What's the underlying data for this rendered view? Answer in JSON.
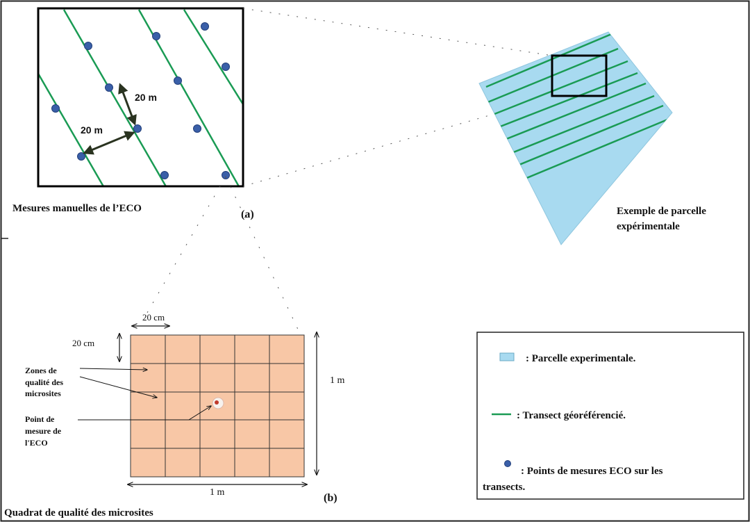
{
  "inset": {
    "spacing_label_vertical": "20 m",
    "spacing_label_horizontal": "20 m",
    "caption": "Mesures manuelles  de l’ECO",
    "tag": "(a)"
  },
  "parcel": {
    "caption_line1": "Exemple de parcelle",
    "caption_line2": "expérimentale"
  },
  "quadrat": {
    "top_dim": "20 cm",
    "left_dim": "20 cm",
    "right_dim": "1 m",
    "bottom_dim": "1 m",
    "zones_label_line1": "Zones de",
    "zones_label_line2": "qualité des",
    "zones_label_line3": "microsites",
    "point_label_line1": "Point de",
    "point_label_line2": "mesure de",
    "point_label_line3": "l'ECO",
    "tag": "(b)",
    "caption": "Quadrat de qualité  des microsites"
  },
  "legend": {
    "parcel": ": Parcelle experimentale.",
    "transect": ": Transect géoréférencié.",
    "points_line1": ": Points de mesures ECO sur les",
    "points_line2": "transects."
  },
  "colors": {
    "parcel_fill": "#a8daf0",
    "transect": "#1a9b54",
    "point_fill": "#3a5fa8",
    "quadrat_fill": "#f8c7a6",
    "frame": "#000000"
  }
}
